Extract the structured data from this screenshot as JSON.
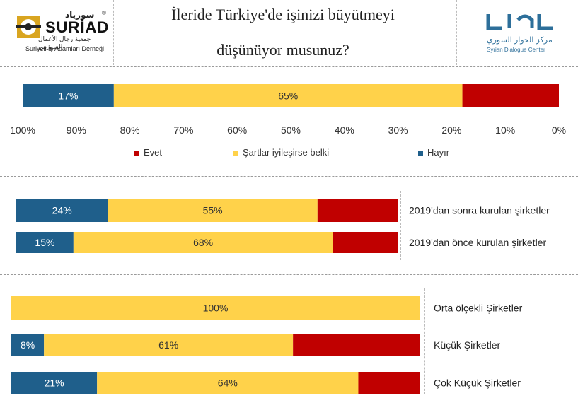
{
  "header": {
    "title_line1": "İleride Türkiye'de işinizi büyütmeyi",
    "title_line2": "düşünüyor musunuz?",
    "left_logo": {
      "arabic": "سورياد",
      "name": "SURİAD",
      "arabic_sub": "جمعية رجال الأعمال السوريين",
      "sub": "Suriyeli İş Adamları Derneği",
      "mark": "®"
    },
    "right_logo": {
      "arabic": "مركز الحوار السوري",
      "sub": "Syrian Dialogue Center"
    }
  },
  "colors": {
    "evet": "#c00000",
    "belki": "#ffd24a",
    "hayir": "#1f5f8b"
  },
  "legend": [
    {
      "key": "evet",
      "label": "Evet"
    },
    {
      "key": "belki",
      "label": "Şartlar iyileşirse belki"
    },
    {
      "key": "hayir",
      "label": "Hayır"
    }
  ],
  "chart_data": [
    {
      "type": "bar",
      "orientation": "horizontal-stacked",
      "axis": {
        "direction": "reversed",
        "range": [
          0,
          100
        ],
        "ticks": [
          "100%",
          "90%",
          "80%",
          "70%",
          "60%",
          "50%",
          "40%",
          "30%",
          "20%",
          "10%",
          "0%"
        ]
      },
      "categories": [
        ""
      ],
      "series": [
        {
          "key": "hayir",
          "values": [
            17
          ],
          "labels": [
            "17%"
          ]
        },
        {
          "key": "belki",
          "values": [
            65
          ],
          "labels": [
            "65%"
          ]
        },
        {
          "key": "evet",
          "values": [
            18
          ],
          "labels": [
            "18%"
          ]
        }
      ]
    },
    {
      "type": "bar",
      "orientation": "horizontal-stacked",
      "categories": [
        "2019'dan sonra kurulan şirketler",
        "2019'dan önce kurulan şirketler"
      ],
      "series": [
        {
          "key": "hayir",
          "values": [
            24,
            15
          ],
          "labels": [
            "24%",
            "15%"
          ]
        },
        {
          "key": "belki",
          "values": [
            55,
            68
          ],
          "labels": [
            "55%",
            "68%"
          ]
        },
        {
          "key": "evet",
          "values": [
            21,
            17
          ],
          "labels": [
            "21%",
            "17%"
          ]
        }
      ]
    },
    {
      "type": "bar",
      "orientation": "horizontal-stacked",
      "categories": [
        "Orta ölçekli Şirketler",
        "Küçük Şirketler",
        "Çok Küçük Şirketler"
      ],
      "series": [
        {
          "key": "hayir",
          "values": [
            0,
            8,
            21
          ],
          "labels": [
            "",
            "8%",
            "21%"
          ]
        },
        {
          "key": "belki",
          "values": [
            100,
            61,
            64
          ],
          "labels": [
            "100%",
            "61%",
            "64%"
          ]
        },
        {
          "key": "evet",
          "values": [
            0,
            31,
            15
          ],
          "labels": [
            "",
            "31%",
            "15%"
          ]
        }
      ]
    }
  ]
}
